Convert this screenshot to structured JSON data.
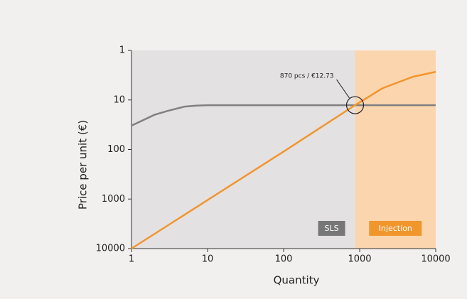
{
  "chart_data": {
    "type": "line",
    "x_label": "Quantity",
    "y_label": "Price per unit (€)",
    "log_x": true,
    "log_y": true,
    "xlim": [
      1,
      10000
    ],
    "xticks": [
      1,
      10,
      100,
      1000,
      10000
    ],
    "ylim": [
      10000,
      1
    ],
    "yticks": [
      1,
      10,
      100,
      1000,
      10000
    ],
    "series": [
      {
        "name": "SLS",
        "color": "#808080",
        "region_color": "#e4e1e3",
        "region": [
          1,
          870
        ],
        "x": [
          1,
          2,
          3,
          5,
          7,
          10,
          100,
          1000,
          10000
        ],
        "values": [
          33,
          20,
          16.6,
          13.6,
          13,
          12.73,
          12.73,
          12.73,
          12.73
        ]
      },
      {
        "name": "Injection",
        "color": "#f0962d",
        "region_color": "#fbd5ae",
        "region": [
          870,
          10000
        ],
        "x": [
          1,
          10,
          100,
          870,
          2000,
          5000,
          10000
        ],
        "values": [
          10000,
          1050,
          110,
          12.73,
          5.8,
          3.4,
          2.7
        ]
      }
    ],
    "annotation": {
      "text": "870 pcs / €12.73",
      "x": 870,
      "y": 12.73
    }
  }
}
